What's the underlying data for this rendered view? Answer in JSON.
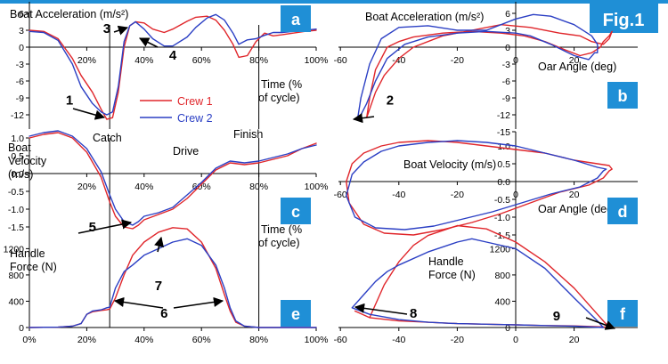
{
  "figure_label": "Fig.1",
  "colors": {
    "crew1": "#e0262b",
    "crew2": "#2b3fc4",
    "badge": "#1f8fd6",
    "strip": "#1f8fd6",
    "axis": "#000000"
  },
  "legend": {
    "crew1": "Crew 1",
    "crew2": "Crew 2"
  },
  "phase_labels": {
    "catch": "Catch",
    "drive": "Drive",
    "finish": "Finish"
  },
  "chart_data": [
    {
      "panel": "a",
      "type": "line",
      "title": "Boat Acceleration (m/s²)",
      "xlabel": "Time (% of cycle)",
      "ylabel": "",
      "xlim": [
        0,
        100
      ],
      "ylim": [
        -15,
        7
      ],
      "xticks": [
        "20%",
        "40%",
        "60%",
        "80%",
        "100%"
      ],
      "yticks": [
        "6",
        "3",
        "0",
        "-3",
        "-6",
        "-9",
        "-12"
      ],
      "vlines": [
        28,
        80
      ],
      "series": [
        {
          "name": "Crew 1",
          "x": [
            0,
            5,
            10,
            15,
            18,
            22,
            25,
            27,
            29,
            31,
            33,
            35,
            37,
            40,
            43,
            47,
            50,
            55,
            58,
            62,
            65,
            68,
            71,
            73,
            76,
            79,
            82,
            85,
            88,
            92,
            96,
            100
          ],
          "y": [
            3,
            2.8,
            1.5,
            -2,
            -5,
            -8,
            -11,
            -12.8,
            -12.5,
            -8,
            0,
            3.8,
            4.5,
            4.3,
            3.2,
            2.6,
            3.2,
            4.6,
            5.3,
            5.5,
            4.8,
            3,
            0.5,
            -1.8,
            -1.5,
            1,
            2.5,
            2,
            2.2,
            2.5,
            2.8,
            3
          ]
        },
        {
          "name": "Crew 2",
          "x": [
            0,
            5,
            10,
            15,
            18,
            22,
            25,
            27,
            29,
            31,
            33,
            35,
            37,
            40,
            43,
            47,
            50,
            55,
            58,
            62,
            65,
            68,
            71,
            73,
            76,
            79,
            82,
            85,
            88,
            92,
            96,
            100
          ],
          "y": [
            2.8,
            2.6,
            1.2,
            -3,
            -7,
            -10,
            -11.5,
            -12,
            -11.5,
            -7,
            1,
            3.8,
            4.5,
            3.2,
            1.5,
            0.2,
            0.2,
            1.8,
            3.5,
            5.2,
            5.8,
            4.8,
            2.5,
            0.5,
            1.3,
            1.5,
            2.1,
            2.6,
            2.6,
            2.8,
            3,
            3.2
          ]
        }
      ],
      "annotations": [
        {
          "label": "1",
          "x": 14,
          "y": -10.2
        },
        {
          "label": "3",
          "x": 27,
          "y": 2.5
        },
        {
          "label": "4",
          "x": 50,
          "y": -2.2
        }
      ]
    },
    {
      "panel": "b",
      "type": "line",
      "title": "Boat Acceleration (m/s²)",
      "xlabel": "Oar Angle (deg)",
      "ylabel": "",
      "xlim": [
        -60,
        40
      ],
      "ylim": [
        -15,
        7
      ],
      "xticks": [
        "-60",
        "-40",
        "-20",
        "0",
        "20"
      ],
      "yticks": [
        "6",
        "3",
        "0",
        "-3",
        "-6",
        "-9",
        "-12",
        "-15"
      ],
      "series": [
        {
          "name": "Crew 1",
          "x": [
            29,
            26,
            22,
            17,
            10,
            3,
            -5,
            -15,
            -25,
            -35,
            -40,
            -44,
            -48,
            -50,
            -51,
            -50,
            -48,
            -45,
            -40,
            -35,
            -25,
            -15,
            -5,
            5,
            15,
            22,
            26,
            30,
            32,
            33,
            32,
            30,
            29
          ],
          "y": [
            0,
            -1,
            -1.5,
            -0.5,
            1,
            2,
            2.5,
            2.8,
            2.5,
            1.8,
            1,
            0,
            -4,
            -9,
            -12.5,
            -11,
            -8,
            -5,
            -2,
            0,
            2,
            3,
            4,
            3.5,
            2.5,
            2,
            1,
            0.5,
            1.5,
            2.8,
            2,
            1,
            0
          ]
        },
        {
          "name": "Crew 2",
          "x": [
            27,
            25,
            20,
            12,
            5,
            0,
            -10,
            -20,
            -30,
            -38,
            -44,
            -48,
            -51,
            -53,
            -54,
            -53,
            -50,
            -46,
            -40,
            -30,
            -20,
            -10,
            0,
            6,
            12,
            20,
            26,
            28,
            28,
            27
          ],
          "y": [
            -1,
            -2.2,
            -1.5,
            0.5,
            2,
            2.5,
            2.8,
            2.5,
            1.8,
            0.5,
            -2,
            -6,
            -10,
            -12,
            -12.3,
            -9,
            -3,
            1.5,
            3.5,
            3.8,
            3,
            3,
            5,
            5.8,
            5.5,
            4,
            2,
            0.5,
            -1,
            -1
          ]
        }
      ],
      "annotations": [
        {
          "label": "2",
          "x": -43,
          "y": -10.2
        }
      ]
    },
    {
      "panel": "c",
      "type": "line",
      "title": "Boat Velocity (m/s)",
      "xlabel": "Time (% of cycle)",
      "ylabel": "",
      "xlim": [
        0,
        100
      ],
      "ylim": [
        -2,
        1.5
      ],
      "xticks": [
        "20%",
        "40%",
        "60%",
        "80%",
        "100%"
      ],
      "yticks": [
        "1.0",
        "0.5",
        "0.0",
        "-0.5",
        "-1.0",
        "-1.5"
      ],
      "vlines": [
        28,
        80
      ],
      "series": [
        {
          "name": "Crew 1",
          "x": [
            0,
            5,
            10,
            15,
            20,
            25,
            28,
            30,
            33,
            36,
            38,
            40,
            45,
            50,
            55,
            60,
            65,
            70,
            75,
            80,
            85,
            90,
            95,
            100
          ],
          "y": [
            1,
            1.1,
            1.15,
            1,
            0.6,
            -0.1,
            -0.8,
            -1.2,
            -1.5,
            -1.55,
            -1.45,
            -1.3,
            -1.15,
            -1,
            -0.7,
            -0.3,
            0.1,
            0.3,
            0.25,
            0.3,
            0.4,
            0.5,
            0.7,
            0.85
          ]
        },
        {
          "name": "Crew 2",
          "x": [
            0,
            5,
            10,
            15,
            20,
            25,
            28,
            30,
            33,
            36,
            38,
            40,
            45,
            50,
            55,
            60,
            65,
            70,
            75,
            80,
            85,
            90,
            95,
            100
          ],
          "y": [
            1.05,
            1.15,
            1.2,
            1.05,
            0.7,
            0.05,
            -0.6,
            -1,
            -1.35,
            -1.45,
            -1.35,
            -1.2,
            -1.1,
            -0.95,
            -0.6,
            -0.25,
            0.15,
            0.35,
            0.3,
            0.35,
            0.45,
            0.55,
            0.7,
            0.8
          ]
        }
      ],
      "annotations": [
        {
          "label": "5",
          "x": 22,
          "y": -1.62
        }
      ]
    },
    {
      "panel": "d",
      "type": "line",
      "title": "Boat Velocity (m/s)",
      "xlabel": "Oar Angle (deg)",
      "ylabel": "",
      "xlim": [
        -60,
        40
      ],
      "ylim": [
        -2,
        1.5
      ],
      "xticks": [
        "-60",
        "-40",
        "-20",
        "0",
        "20"
      ],
      "yticks": [
        "1.0",
        "0.5",
        "0.0",
        "-0.5",
        "-1.0",
        "-1.5"
      ],
      "series": [
        {
          "name": "Crew 1",
          "x": [
            32,
            30,
            25,
            15,
            5,
            -5,
            -15,
            -25,
            -35,
            -45,
            -52,
            -57,
            -58,
            -56,
            -52,
            -46,
            -40,
            -30,
            -20,
            -10,
            0,
            10,
            20,
            28,
            32,
            33,
            32
          ],
          "y": [
            0.3,
            0.1,
            -0.1,
            -0.3,
            -0.6,
            -0.9,
            -1.15,
            -1.35,
            -1.5,
            -1.45,
            -1.2,
            -0.6,
            0,
            0.5,
            0.8,
            1,
            1.1,
            1.15,
            1.1,
            1,
            0.9,
            0.8,
            0.6,
            0.5,
            0.45,
            0.35,
            0.3
          ]
        },
        {
          "name": "Crew 2",
          "x": [
            30,
            28,
            22,
            12,
            2,
            -8,
            -18,
            -28,
            -38,
            -48,
            -55,
            -58,
            -56,
            -52,
            -46,
            -40,
            -30,
            -20,
            -10,
            0,
            10,
            20,
            28,
            31,
            30
          ],
          "y": [
            0.3,
            0.1,
            -0.15,
            -0.35,
            -0.6,
            -0.85,
            -1.05,
            -1.25,
            -1.35,
            -1.3,
            -1,
            -0.4,
            0.2,
            0.55,
            0.85,
            1,
            1.1,
            1.15,
            1.1,
            1,
            0.8,
            0.6,
            0.4,
            0.35,
            0.3
          ]
        }
      ]
    },
    {
      "panel": "e",
      "type": "line",
      "title": "Handle Force (N)",
      "xlabel": "",
      "ylabel": "",
      "xlim": [
        0,
        100
      ],
      "ylim": [
        0,
        1450
      ],
      "xticks": [
        "0%",
        "20%",
        "40%",
        "60%",
        "80%",
        "100%"
      ],
      "yticks": [
        "1200",
        "800",
        "400",
        "0"
      ],
      "vlines": [
        28,
        80
      ],
      "series": [
        {
          "name": "Crew 1",
          "x": [
            0,
            10,
            15,
            18,
            20,
            22,
            25,
            27,
            28,
            30,
            33,
            36,
            40,
            45,
            50,
            55,
            60,
            65,
            68,
            70,
            72,
            75,
            80,
            90,
            100
          ],
          "y": [
            0,
            5,
            20,
            60,
            200,
            240,
            260,
            270,
            280,
            450,
            800,
            1100,
            1300,
            1450,
            1520,
            1500,
            1300,
            900,
            500,
            250,
            80,
            20,
            0,
            0,
            0
          ]
        },
        {
          "name": "Crew 2",
          "x": [
            0,
            10,
            15,
            18,
            20,
            22,
            25,
            27,
            28,
            30,
            33,
            36,
            40,
            45,
            50,
            55,
            60,
            65,
            68,
            70,
            72,
            75,
            80,
            90,
            100
          ],
          "y": [
            0,
            5,
            20,
            60,
            200,
            250,
            270,
            300,
            310,
            600,
            850,
            950,
            1100,
            1200,
            1300,
            1350,
            1250,
            950,
            600,
            300,
            100,
            20,
            0,
            0,
            0
          ]
        }
      ],
      "annotations": [
        {
          "label": "6",
          "x": 47,
          "y": 150
        },
        {
          "label": "7",
          "x": 45,
          "y": 570
        }
      ]
    },
    {
      "panel": "f",
      "type": "line",
      "title": "Handle Force (N)",
      "xlabel": "",
      "ylabel": "",
      "xlim": [
        -60,
        40
      ],
      "ylim": [
        0,
        1450
      ],
      "xticks": [
        "-60",
        "-40",
        "-20",
        "0",
        "20"
      ],
      "yticks": [
        "1200",
        "800",
        "400",
        "0"
      ],
      "series": [
        {
          "name": "Crew 1",
          "x": [
            -55,
            -50,
            -45,
            -40,
            -35,
            -30,
            -20,
            -10,
            0,
            10,
            20,
            28,
            32,
            30,
            20,
            10,
            0,
            -10,
            -20,
            -30,
            -40,
            -50,
            -55
          ],
          "y": [
            250,
            150,
            650,
            1000,
            1250,
            1400,
            1550,
            1500,
            1300,
            1000,
            600,
            200,
            0,
            10,
            25,
            30,
            40,
            50,
            60,
            80,
            100,
            150,
            250
          ]
        },
        {
          "name": "Crew 2",
          "x": [
            -56,
            -52,
            -48,
            -44,
            -40,
            -30,
            -20,
            -15,
            -10,
            0,
            10,
            20,
            28,
            30,
            20,
            10,
            0,
            -10,
            -20,
            -30,
            -40,
            -50,
            -56
          ],
          "y": [
            300,
            500,
            700,
            850,
            950,
            1150,
            1300,
            1350,
            1300,
            1200,
            900,
            450,
            100,
            0,
            20,
            30,
            40,
            50,
            60,
            80,
            120,
            200,
            300
          ]
        }
      ],
      "annotations": [
        {
          "label": "8",
          "x": -35,
          "y": 150
        },
        {
          "label": "9",
          "x": 14,
          "y": 110
        }
      ]
    }
  ]
}
